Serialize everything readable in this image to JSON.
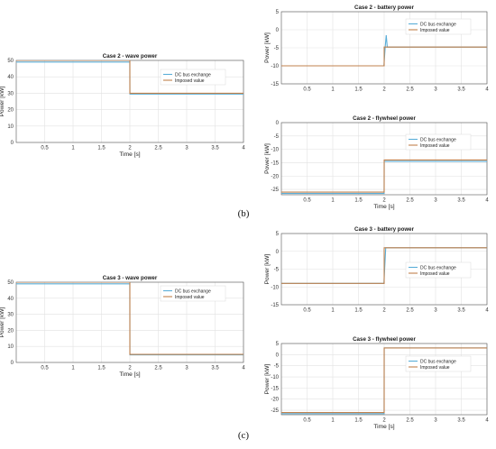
{
  "panel_labels": {
    "b": "(b)",
    "c": "(c)"
  },
  "colors": {
    "dc_bus": "#5aaed8",
    "imposed": "#c1814d",
    "grid": "#e2e2e2",
    "axis": "#555555"
  },
  "chart_data": [
    {
      "id": "case2-wave",
      "type": "line",
      "title": "Case 2 - wave power",
      "xlabel": "Time [s]",
      "ylabel": "Power [kW]",
      "xlim": [
        0,
        4
      ],
      "ylim": [
        0,
        50
      ],
      "xticks": [
        0.5,
        1,
        1.5,
        2,
        2.5,
        3,
        3.5,
        4
      ],
      "yticks": [
        0,
        10,
        20,
        30,
        40,
        50
      ],
      "grid": true,
      "legend_position": "upper-right",
      "series": [
        {
          "name": "DC bus exchange",
          "color": "#5aaed8",
          "x": [
            0,
            1.999,
            2.001,
            4
          ],
          "y": [
            49,
            49,
            29.5,
            29.5
          ]
        },
        {
          "name": "Imposed value",
          "color": "#c1814d",
          "x": [
            0,
            2,
            2,
            4
          ],
          "y": [
            50,
            50,
            30,
            30
          ]
        }
      ]
    },
    {
      "id": "case2-battery",
      "type": "line",
      "title": "Case 2 - battery power",
      "xlabel": "",
      "ylabel": "Power [kW]",
      "xlim": [
        0,
        4
      ],
      "ylim": [
        -15,
        5
      ],
      "xticks": [
        0.5,
        1,
        1.5,
        2,
        2.5,
        3,
        3.5,
        4
      ],
      "yticks": [
        -15,
        -10,
        -5,
        0,
        5
      ],
      "grid": true,
      "legend_position": "upper-right",
      "series": [
        {
          "name": "DC bus exchange",
          "color": "#5aaed8",
          "x": [
            0,
            1.995,
            2.02,
            2.04,
            2.06,
            2.09,
            4
          ],
          "y": [
            -10,
            -10,
            -4.8,
            -1.5,
            -4.8,
            -4.8,
            -4.8
          ]
        },
        {
          "name": "Imposed value",
          "color": "#c1814d",
          "x": [
            0,
            2,
            2,
            4
          ],
          "y": [
            -10,
            -10,
            -4.8,
            -4.8
          ]
        }
      ]
    },
    {
      "id": "case2-flywheel",
      "type": "line",
      "title": "Case 2 - flywheel power",
      "xlabel": "Time [s]",
      "ylabel": "Power [kW]",
      "xlim": [
        0,
        4
      ],
      "ylim": [
        -27,
        0
      ],
      "xticks": [
        0.5,
        1,
        1.5,
        2,
        2.5,
        3,
        3.5,
        4
      ],
      "yticks": [
        -25,
        -20,
        -15,
        -10,
        -5,
        0
      ],
      "grid": true,
      "legend_position": "upper-right",
      "series": [
        {
          "name": "DC bus exchange",
          "color": "#5aaed8",
          "x": [
            0,
            1.999,
            2.001,
            4
          ],
          "y": [
            -26.5,
            -26.5,
            -14.5,
            -14.5
          ]
        },
        {
          "name": "Imposed value",
          "color": "#c1814d",
          "x": [
            0,
            2,
            2,
            4
          ],
          "y": [
            -26,
            -26,
            -14,
            -14
          ]
        }
      ]
    },
    {
      "id": "case3-wave",
      "type": "line",
      "title": "Case 3 - wave power",
      "xlabel": "Time [s]",
      "ylabel": "Power [kW]",
      "xlim": [
        0,
        4
      ],
      "ylim": [
        0,
        50
      ],
      "xticks": [
        0.5,
        1,
        1.5,
        2,
        2.5,
        3,
        3.5,
        4
      ],
      "yticks": [
        0,
        10,
        20,
        30,
        40,
        50
      ],
      "grid": true,
      "legend_position": "upper-right",
      "series": [
        {
          "name": "DC bus exchange",
          "color": "#5aaed8",
          "x": [
            0,
            1.999,
            2.001,
            4
          ],
          "y": [
            49,
            49,
            4.7,
            4.7
          ]
        },
        {
          "name": "Imposed value",
          "color": "#c1814d",
          "x": [
            0,
            2,
            2,
            4
          ],
          "y": [
            50,
            50,
            5,
            5
          ]
        }
      ]
    },
    {
      "id": "case3-battery",
      "type": "line",
      "title": "Case 3 - battery power",
      "xlabel": "",
      "ylabel": "Power [kW]",
      "xlim": [
        0,
        4
      ],
      "ylim": [
        -15,
        5
      ],
      "xticks": [
        0.5,
        1,
        1.5,
        2,
        2.5,
        3,
        3.5,
        4
      ],
      "yticks": [
        -15,
        -10,
        -5,
        0,
        5
      ],
      "grid": true,
      "legend_position": "lower-right",
      "series": [
        {
          "name": "DC bus exchange",
          "color": "#5aaed8",
          "x": [
            0,
            1.995,
            2.03,
            4
          ],
          "y": [
            -9,
            -9,
            1,
            1
          ]
        },
        {
          "name": "Imposed value",
          "color": "#c1814d",
          "x": [
            0,
            2,
            2,
            4
          ],
          "y": [
            -9,
            -9,
            1,
            1
          ]
        }
      ]
    },
    {
      "id": "case3-flywheel",
      "type": "line",
      "title": "Case 3 - flywheel power",
      "xlabel": "Time [s]",
      "ylabel": "Power [kW]",
      "xlim": [
        0,
        4
      ],
      "ylim": [
        -27,
        5
      ],
      "xticks": [
        0.5,
        1,
        1.5,
        2,
        2.5,
        3,
        3.5,
        4
      ],
      "yticks": [
        -25,
        -20,
        -15,
        -10,
        -5,
        0,
        5
      ],
      "grid": true,
      "legend_position": "right",
      "series": [
        {
          "name": "DC bus exchange",
          "color": "#5aaed8",
          "x": [
            0,
            1.999,
            2.001,
            4
          ],
          "y": [
            -26.5,
            -26.5,
            3,
            3
          ]
        },
        {
          "name": "Imposed value",
          "color": "#c1814d",
          "x": [
            0,
            2,
            2,
            4
          ],
          "y": [
            -26,
            -26,
            3,
            3
          ]
        }
      ]
    }
  ]
}
